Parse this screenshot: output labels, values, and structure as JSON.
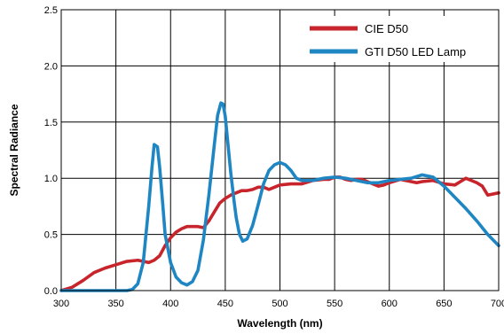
{
  "chart_data": {
    "type": "line",
    "title": "",
    "xlabel": "Wavelength (nm)",
    "ylabel": "Spectral Radiance",
    "xlim": [
      300,
      700
    ],
    "ylim": [
      0,
      2.5
    ],
    "x_ticks": [
      "300",
      "350",
      "400",
      "450",
      "500",
      "550",
      "600",
      "650",
      "700"
    ],
    "y_ticks": [
      "0.0",
      "0.5",
      "1.0",
      "1.5",
      "2.0",
      "2.5"
    ],
    "grid": true,
    "legend_position": "top-right",
    "series": [
      {
        "name": "CIE D50",
        "color": "#c8242b",
        "x": [
          300,
          310,
          320,
          330,
          340,
          350,
          360,
          370,
          375,
          380,
          385,
          390,
          395,
          400,
          405,
          410,
          415,
          420,
          425,
          430,
          435,
          440,
          445,
          450,
          455,
          460,
          465,
          470,
          475,
          480,
          485,
          490,
          495,
          500,
          510,
          520,
          530,
          540,
          545,
          550,
          555,
          560,
          565,
          570,
          575,
          580,
          585,
          590,
          595,
          600,
          610,
          620,
          625,
          630,
          640,
          650,
          660,
          665,
          670,
          675,
          680,
          685,
          690,
          700
        ],
        "values": [
          0.0,
          0.03,
          0.09,
          0.16,
          0.2,
          0.23,
          0.26,
          0.27,
          0.26,
          0.25,
          0.27,
          0.31,
          0.4,
          0.47,
          0.52,
          0.55,
          0.57,
          0.57,
          0.57,
          0.56,
          0.62,
          0.7,
          0.78,
          0.82,
          0.85,
          0.87,
          0.89,
          0.89,
          0.9,
          0.92,
          0.92,
          0.9,
          0.92,
          0.94,
          0.95,
          0.95,
          0.98,
          0.99,
          0.99,
          1.01,
          1.01,
          0.99,
          0.98,
          0.99,
          0.99,
          0.97,
          0.95,
          0.93,
          0.94,
          0.96,
          0.99,
          0.97,
          0.96,
          0.97,
          0.98,
          0.95,
          0.94,
          0.97,
          1.0,
          0.98,
          0.96,
          0.93,
          0.85,
          0.87
        ]
      },
      {
        "name": "GTI D50 LED Lamp",
        "color": "#1f86c4",
        "x": [
          300,
          330,
          360,
          365,
          370,
          375,
          380,
          383,
          385,
          388,
          390,
          393,
          395,
          400,
          405,
          410,
          415,
          420,
          425,
          430,
          435,
          440,
          443,
          446,
          448,
          450,
          452,
          455,
          458,
          460,
          463,
          466,
          470,
          475,
          480,
          485,
          490,
          495,
          500,
          505,
          510,
          515,
          520,
          530,
          540,
          550,
          560,
          570,
          580,
          590,
          600,
          610,
          620,
          630,
          640,
          650,
          660,
          670,
          680,
          690,
          700
        ],
        "values": [
          0.0,
          0.0,
          0.0,
          0.01,
          0.06,
          0.25,
          0.75,
          1.1,
          1.3,
          1.28,
          1.1,
          0.75,
          0.5,
          0.25,
          0.12,
          0.07,
          0.05,
          0.08,
          0.18,
          0.45,
          0.85,
          1.3,
          1.56,
          1.67,
          1.66,
          1.55,
          1.35,
          1.05,
          0.8,
          0.65,
          0.5,
          0.44,
          0.46,
          0.58,
          0.76,
          0.95,
          1.07,
          1.12,
          1.14,
          1.12,
          1.07,
          1.0,
          0.98,
          0.98,
          1.0,
          1.01,
          1.0,
          0.98,
          0.96,
          0.96,
          0.98,
          0.99,
          1.0,
          1.03,
          1.01,
          0.93,
          0.83,
          0.73,
          0.62,
          0.5,
          0.4
        ]
      }
    ]
  }
}
